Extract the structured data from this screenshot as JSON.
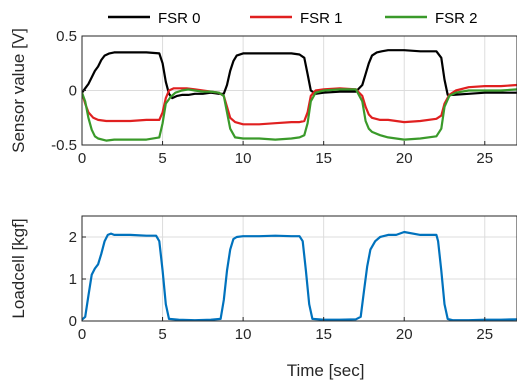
{
  "chart_data": [
    {
      "type": "line",
      "ylabel": "Sensor value [V]",
      "xlabel": "",
      "xlim": [
        0,
        27
      ],
      "ylim": [
        -0.5,
        0.5
      ],
      "xticks": [
        0,
        5,
        10,
        15,
        20,
        25
      ],
      "xtick_labels": [
        "0",
        "5",
        "10",
        "15",
        "20",
        "25"
      ],
      "yticks": [
        -0.5,
        0,
        0.5
      ],
      "ytick_labels": [
        "-0.5",
        "0",
        "0.5"
      ],
      "grid": true,
      "legend": "top-outside",
      "series": [
        {
          "name": "FSR 0",
          "color": "#000000",
          "x": [
            0,
            0.2,
            0.4,
            0.6,
            0.8,
            1.0,
            1.2,
            1.4,
            1.7,
            2.0,
            3.0,
            4.0,
            4.8,
            5.0,
            5.2,
            5.4,
            5.6,
            5.9,
            6.2,
            6.6,
            7.0,
            7.5,
            8.0,
            8.5,
            8.8,
            9.0,
            9.2,
            9.4,
            9.6,
            10.0,
            11.0,
            12.0,
            13.0,
            13.5,
            13.8,
            14.0,
            14.2,
            14.5,
            15.0,
            16.0,
            17.0,
            17.4,
            17.6,
            17.8,
            18.0,
            18.3,
            18.6,
            19.0,
            20.0,
            21.0,
            22.0,
            22.3,
            22.5,
            22.7,
            23.0,
            24.0,
            25.0,
            26.0,
            27.0
          ],
          "values": [
            -0.02,
            0.02,
            0.06,
            0.12,
            0.18,
            0.22,
            0.28,
            0.32,
            0.34,
            0.35,
            0.35,
            0.35,
            0.34,
            0.25,
            0.08,
            -0.03,
            -0.07,
            -0.05,
            -0.04,
            -0.04,
            -0.03,
            -0.03,
            -0.02,
            -0.03,
            -0.03,
            0.05,
            0.18,
            0.27,
            0.32,
            0.34,
            0.34,
            0.34,
            0.34,
            0.33,
            0.3,
            0.15,
            0.0,
            -0.03,
            -0.02,
            -0.01,
            -0.01,
            0.05,
            0.15,
            0.25,
            0.32,
            0.35,
            0.36,
            0.37,
            0.37,
            0.36,
            0.36,
            0.3,
            0.1,
            -0.04,
            -0.04,
            -0.03,
            -0.02,
            -0.02,
            -0.02
          ]
        },
        {
          "name": "FSR 1",
          "color": "#e02020",
          "x": [
            0,
            0.2,
            0.4,
            0.7,
            1.0,
            1.5,
            2.0,
            3.0,
            4.0,
            4.8,
            5.0,
            5.2,
            5.4,
            5.7,
            6.0,
            6.5,
            7.0,
            7.5,
            8.0,
            8.5,
            8.8,
            9.0,
            9.2,
            9.5,
            10.0,
            11.0,
            12.0,
            13.0,
            13.5,
            13.8,
            14.0,
            14.2,
            14.5,
            15.0,
            16.0,
            17.0,
            17.4,
            17.6,
            17.8,
            18.0,
            18.5,
            19.0,
            20.0,
            21.0,
            22.0,
            22.3,
            22.5,
            22.8,
            23.2,
            24.0,
            25.0,
            26.0,
            27.0
          ],
          "values": [
            -0.02,
            -0.12,
            -0.2,
            -0.25,
            -0.27,
            -0.28,
            -0.28,
            -0.28,
            -0.27,
            -0.27,
            -0.2,
            -0.07,
            0.0,
            0.02,
            0.02,
            0.02,
            0.01,
            0.0,
            -0.01,
            -0.02,
            -0.05,
            -0.15,
            -0.25,
            -0.29,
            -0.31,
            -0.31,
            -0.3,
            -0.29,
            -0.29,
            -0.28,
            -0.2,
            -0.05,
            0.0,
            0.01,
            0.02,
            0.01,
            -0.05,
            -0.15,
            -0.22,
            -0.25,
            -0.27,
            -0.27,
            -0.29,
            -0.28,
            -0.26,
            -0.23,
            -0.12,
            -0.04,
            0.0,
            0.03,
            0.04,
            0.04,
            0.05
          ]
        },
        {
          "name": "FSR 2",
          "color": "#3a9a2a",
          "x": [
            0,
            0.2,
            0.4,
            0.6,
            0.8,
            1.0,
            1.5,
            2.0,
            3.0,
            4.0,
            4.8,
            5.0,
            5.2,
            5.5,
            5.8,
            6.2,
            6.6,
            7.0,
            7.5,
            8.0,
            8.5,
            8.8,
            9.0,
            9.2,
            9.5,
            10.0,
            11.0,
            12.0,
            13.0,
            13.5,
            13.8,
            14.0,
            14.2,
            14.5,
            15.0,
            16.0,
            17.0,
            17.4,
            17.6,
            17.8,
            18.0,
            18.5,
            19.0,
            20.0,
            21.0,
            22.0,
            22.3,
            22.5,
            22.8,
            23.2,
            24.0,
            25.0,
            26.0,
            27.0
          ],
          "values": [
            -0.02,
            -0.1,
            -0.25,
            -0.36,
            -0.42,
            -0.44,
            -0.46,
            -0.45,
            -0.45,
            -0.45,
            -0.43,
            -0.3,
            -0.12,
            -0.06,
            -0.02,
            0.0,
            0.01,
            0.0,
            -0.01,
            -0.01,
            -0.02,
            -0.05,
            -0.2,
            -0.35,
            -0.43,
            -0.44,
            -0.44,
            -0.45,
            -0.44,
            -0.43,
            -0.41,
            -0.3,
            -0.1,
            -0.02,
            0.0,
            0.01,
            0.01,
            -0.1,
            -0.28,
            -0.35,
            -0.38,
            -0.41,
            -0.43,
            -0.45,
            -0.44,
            -0.42,
            -0.35,
            -0.15,
            -0.05,
            -0.02,
            0.0,
            0.0,
            0.0,
            0.01
          ]
        }
      ]
    },
    {
      "type": "line",
      "ylabel": "Loadcell [kgf]",
      "xlabel": "Time [sec]",
      "xlim": [
        0,
        27
      ],
      "ylim": [
        0,
        2.5
      ],
      "xticks": [
        0,
        5,
        10,
        15,
        20,
        25
      ],
      "xtick_labels": [
        "0",
        "5",
        "10",
        "15",
        "20",
        "25"
      ],
      "yticks": [
        0,
        1,
        2
      ],
      "ytick_labels": [
        "0",
        "1",
        "2"
      ],
      "grid": true,
      "series": [
        {
          "name": "",
          "color": "#0072bd",
          "x": [
            0,
            0.2,
            0.4,
            0.6,
            0.8,
            1.0,
            1.2,
            1.4,
            1.6,
            1.8,
            2.0,
            3.0,
            4.0,
            4.6,
            4.8,
            5.0,
            5.2,
            5.4,
            6.0,
            7.0,
            8.0,
            8.6,
            8.8,
            9.0,
            9.2,
            9.4,
            9.6,
            10.0,
            11.0,
            12.0,
            13.0,
            13.5,
            13.7,
            13.9,
            14.1,
            14.3,
            15.0,
            16.0,
            17.0,
            17.3,
            17.5,
            17.7,
            17.9,
            18.2,
            18.5,
            19.0,
            19.5,
            20.0,
            21.0,
            22.0,
            22.1,
            22.3,
            22.5,
            22.7,
            23.0,
            24.0,
            25.0,
            26.0,
            27.0
          ],
          "values": [
            0.03,
            0.1,
            0.6,
            1.1,
            1.25,
            1.35,
            1.6,
            1.9,
            2.05,
            2.08,
            2.05,
            2.05,
            2.03,
            2.03,
            1.9,
            1.2,
            0.4,
            0.05,
            0.03,
            0.02,
            0.03,
            0.05,
            0.5,
            1.2,
            1.7,
            1.95,
            2.0,
            2.02,
            2.02,
            2.03,
            2.02,
            2.02,
            1.9,
            1.2,
            0.4,
            0.05,
            0.03,
            0.03,
            0.04,
            0.1,
            0.7,
            1.3,
            1.7,
            1.9,
            2.0,
            2.05,
            2.05,
            2.12,
            2.05,
            2.05,
            1.9,
            1.2,
            0.4,
            0.05,
            0.02,
            0.02,
            0.03,
            0.03,
            0.04
          ]
        }
      ]
    }
  ]
}
